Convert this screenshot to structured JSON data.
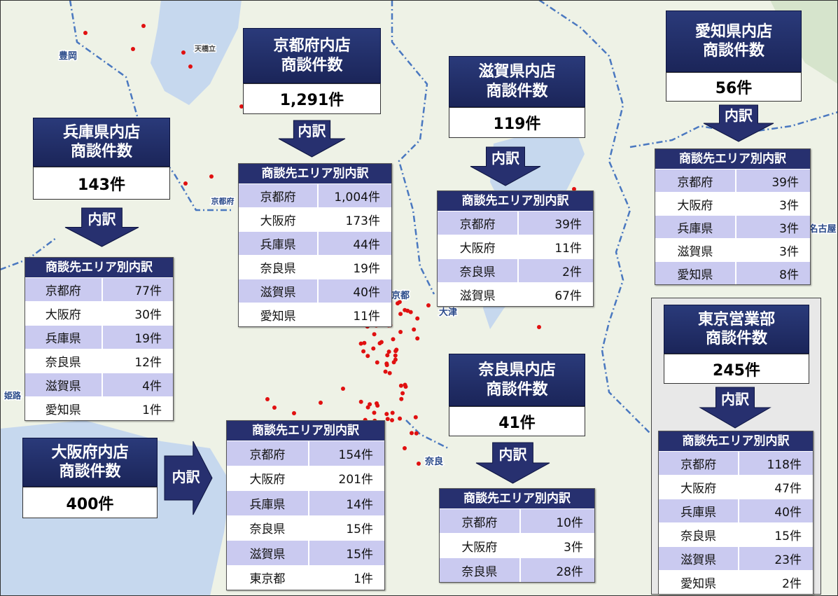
{
  "map_labels": [
    "豊岡",
    "天橋立",
    "京都府",
    "京都",
    "大津",
    "奈良",
    "名古屋",
    "姫路"
  ],
  "panels": [
    {
      "title": [
        "京都府内店",
        "商談件数"
      ],
      "total": "1,291件",
      "arrow": "内訳",
      "table": {
        "title": "商談先エリア別内訳",
        "rows": [
          [
            "京都府",
            "1,004件"
          ],
          [
            "大阪府",
            "173件"
          ],
          [
            "兵庫県",
            "44件"
          ],
          [
            "奈良県",
            "19件"
          ],
          [
            "滋賀県",
            "40件"
          ],
          [
            "愛知県",
            "11件"
          ]
        ]
      }
    },
    {
      "title": [
        "滋賀県内店",
        "商談件数"
      ],
      "total": "119件",
      "arrow": "内訳",
      "table": {
        "title": "商談先エリア別内訳",
        "rows": [
          [
            "京都府",
            "39件"
          ],
          [
            "大阪府",
            "11件"
          ],
          [
            "奈良県",
            "2件"
          ],
          [
            "滋賀県",
            "67件"
          ]
        ]
      }
    },
    {
      "title": [
        "愛知県内店",
        "商談件数"
      ],
      "total": "56件",
      "arrow": "内訳",
      "table": {
        "title": "商談先エリア別内訳",
        "rows": [
          [
            "京都府",
            "39件"
          ],
          [
            "大阪府",
            "3件"
          ],
          [
            "兵庫県",
            "3件"
          ],
          [
            "滋賀県",
            "3件"
          ],
          [
            "愛知県",
            "8件"
          ]
        ]
      }
    },
    {
      "title": [
        "兵庫県内店",
        "商談件数"
      ],
      "total": "143件",
      "arrow": "内訳",
      "table": {
        "title": "商談先エリア別内訳",
        "rows": [
          [
            "京都府",
            "77件"
          ],
          [
            "大阪府",
            "30件"
          ],
          [
            "兵庫県",
            "19件"
          ],
          [
            "奈良県",
            "12件"
          ],
          [
            "滋賀県",
            "4件"
          ],
          [
            "愛知県",
            "1件"
          ]
        ]
      }
    },
    {
      "title": [
        "大阪府内店",
        "商談件数"
      ],
      "total": "400件",
      "arrow": "内訳",
      "table": {
        "title": "商談先エリア別内訳",
        "rows": [
          [
            "京都府",
            "154件"
          ],
          [
            "大阪府",
            "201件"
          ],
          [
            "兵庫県",
            "14件"
          ],
          [
            "奈良県",
            "15件"
          ],
          [
            "滋賀県",
            "15件"
          ],
          [
            "東京都",
            "1件"
          ]
        ]
      }
    },
    {
      "title": [
        "奈良県内店",
        "商談件数"
      ],
      "total": "41件",
      "arrow": "内訳",
      "table": {
        "title": "商談先エリア別内訳",
        "rows": [
          [
            "京都府",
            "10件"
          ],
          [
            "大阪府",
            "3件"
          ],
          [
            "奈良県",
            "28件"
          ]
        ]
      }
    },
    {
      "title": [
        "東京営業部",
        "商談件数"
      ],
      "total": "245件",
      "arrow": "内訳",
      "table": {
        "title": "商談先エリア別内訳",
        "rows": [
          [
            "京都府",
            "118件"
          ],
          [
            "大阪府",
            "47件"
          ],
          [
            "兵庫県",
            "40件"
          ],
          [
            "奈良県",
            "15件"
          ],
          [
            "滋賀県",
            "23件"
          ],
          [
            "愛知県",
            "2件"
          ]
        ]
      }
    }
  ]
}
